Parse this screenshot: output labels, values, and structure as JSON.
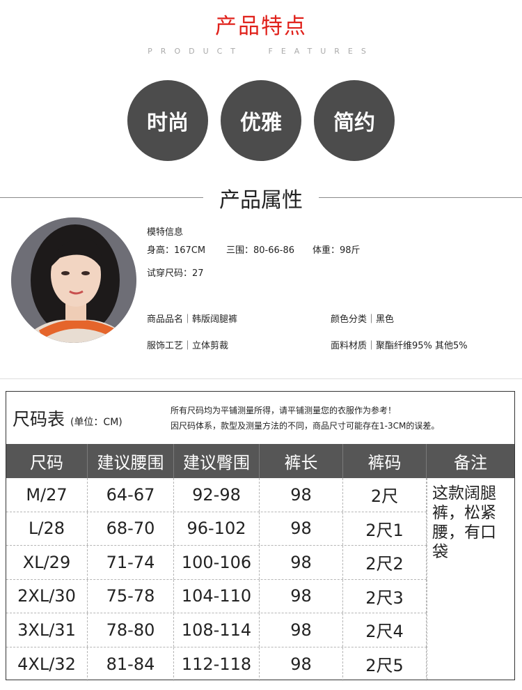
{
  "features": {
    "title": "产品特点",
    "subtitle": "PRODUCT FEATURES",
    "items": [
      "时尚",
      "优雅",
      "简约"
    ]
  },
  "attributes": {
    "title": "产品属性",
    "model_info_label": "模特信息",
    "height": "身高：167CM",
    "measurements": "三围：80-66-86",
    "weight": "体重：98斤",
    "trial_size": "试穿尺码：27",
    "product_name": "商品品名｜韩版阔腿裤",
    "color": "颜色分类｜黑色",
    "craft": "服饰工艺｜立体剪裁",
    "material": "面料材质｜聚酯纤维95% 其他5%"
  },
  "size_chart": {
    "title": "尺码表",
    "unit": "(单位：CM)",
    "note1": "所有尺码均为平铺测量所得，请平铺测量您的衣服作为参考！",
    "note2": "因尺码体系，款型及测量方法的不同，商品尺寸可能存在1-3CM的误差。",
    "headers": [
      "尺码",
      "建议腰围",
      "建议臀围",
      "裤长",
      "裤码",
      "备注"
    ],
    "rows": [
      [
        "M/27",
        "64-67",
        "92-98",
        "98",
        "2尺"
      ],
      [
        "L/28",
        "68-70",
        "96-102",
        "98",
        "2尺1"
      ],
      [
        "XL/29",
        "71-74",
        "100-106",
        "98",
        "2尺2"
      ],
      [
        "2XL/30",
        "75-78",
        "104-110",
        "98",
        "2尺3"
      ],
      [
        "3XL/31",
        "78-80",
        "108-114",
        "98",
        "2尺4"
      ],
      [
        "4XL/32",
        "81-84",
        "112-118",
        "98",
        "2尺5"
      ]
    ],
    "remark": "这款阔腿裤，松紧腰，有口袋"
  },
  "colors": {
    "accent_red": "#e0211b",
    "bubble_gray": "#4c4c4c",
    "header_gray": "#565656"
  }
}
